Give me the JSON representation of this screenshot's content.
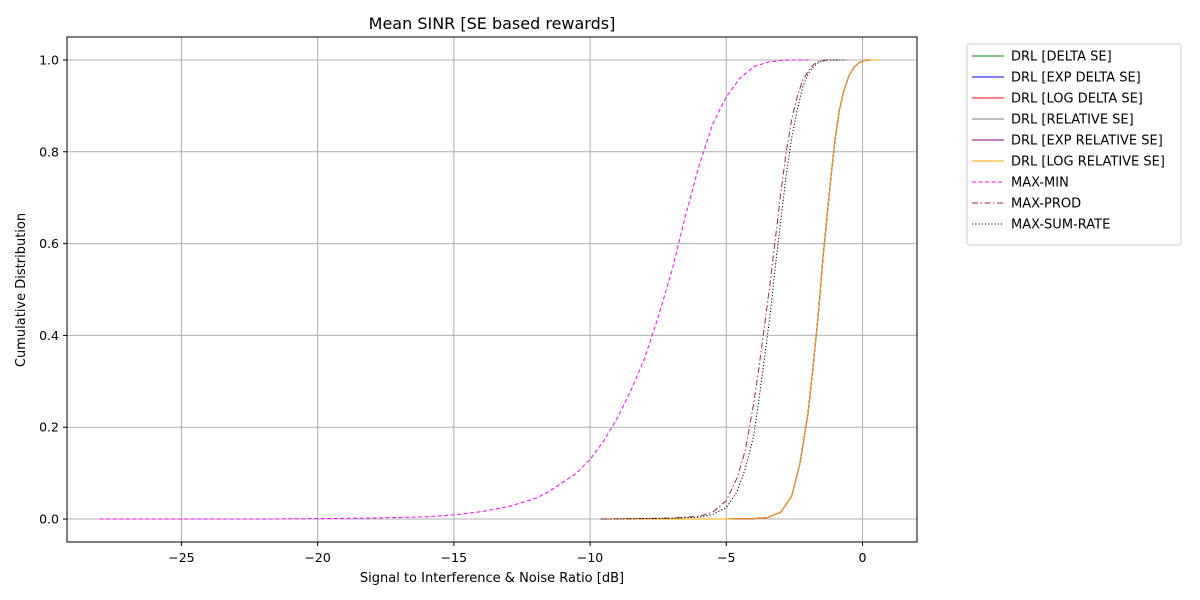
{
  "chart_data": {
    "type": "line",
    "title": "Mean SINR [SE based rewards]",
    "xlabel": "Signal to Interference & Noise Ratio [dB]",
    "ylabel": "Cumulative Distribution",
    "xlim": [
      -29.2,
      2.0
    ],
    "ylim": [
      -0.05,
      1.05
    ],
    "xticks": [
      -25,
      -20,
      -15,
      -10,
      -5,
      0
    ],
    "xtick_labels": [
      "−25",
      "−20",
      "−15",
      "−10",
      "−5",
      "0"
    ],
    "yticks": [
      0.0,
      0.2,
      0.4,
      0.6,
      0.8,
      1.0
    ],
    "ytick_labels": [
      "0.0",
      "0.2",
      "0.4",
      "0.6",
      "0.8",
      "1.0"
    ],
    "grid": true,
    "legend_position": "outside-right",
    "series": [
      {
        "name": "DRL [DELTA SE]",
        "color": "#008000",
        "style": "solid",
        "x": [
          -9.6,
          -6,
          -5,
          -4,
          -3.5,
          -3,
          -2.6,
          -2.3,
          -2.0,
          -1.8,
          -1.6,
          -1.45,
          -1.3,
          -1.15,
          -1.0,
          -0.85,
          -0.7,
          -0.5,
          -0.3,
          -0.1,
          0.1,
          0.3,
          0.55
        ],
        "y": [
          0.0,
          0.0,
          0.0,
          0.001,
          0.003,
          0.015,
          0.05,
          0.12,
          0.23,
          0.34,
          0.46,
          0.57,
          0.66,
          0.75,
          0.83,
          0.89,
          0.93,
          0.965,
          0.985,
          0.995,
          0.999,
          1.0,
          1.0
        ]
      },
      {
        "name": "DRL [EXP DELTA SE]",
        "color": "#0000ff",
        "style": "solid",
        "x": [
          -9.6,
          -6,
          -5,
          -4,
          -3.5,
          -3,
          -2.6,
          -2.3,
          -2.0,
          -1.8,
          -1.6,
          -1.45,
          -1.3,
          -1.15,
          -1.0,
          -0.85,
          -0.7,
          -0.5,
          -0.3,
          -0.1,
          0.1,
          0.3,
          0.55
        ],
        "y": [
          0.0,
          0.0,
          0.0,
          0.001,
          0.003,
          0.015,
          0.05,
          0.12,
          0.23,
          0.34,
          0.46,
          0.57,
          0.66,
          0.75,
          0.83,
          0.89,
          0.93,
          0.965,
          0.985,
          0.995,
          0.999,
          1.0,
          1.0
        ]
      },
      {
        "name": "DRL [LOG DELTA SE]",
        "color": "#ff0000",
        "style": "solid",
        "x": [
          -9.6,
          -6,
          -5,
          -4,
          -3.5,
          -3,
          -2.6,
          -2.3,
          -2.0,
          -1.8,
          -1.6,
          -1.45,
          -1.3,
          -1.15,
          -1.0,
          -0.85,
          -0.7,
          -0.5,
          -0.3,
          -0.1,
          0.1,
          0.3,
          0.55
        ],
        "y": [
          0.0,
          0.0,
          0.0,
          0.001,
          0.003,
          0.015,
          0.05,
          0.12,
          0.23,
          0.34,
          0.46,
          0.57,
          0.66,
          0.75,
          0.83,
          0.89,
          0.93,
          0.965,
          0.985,
          0.995,
          0.999,
          1.0,
          1.0
        ]
      },
      {
        "name": "DRL [RELATIVE SE]",
        "color": "#808080",
        "style": "solid",
        "x": [
          -9.6,
          -6,
          -5,
          -4,
          -3.5,
          -3,
          -2.6,
          -2.3,
          -2.0,
          -1.8,
          -1.6,
          -1.45,
          -1.3,
          -1.15,
          -1.0,
          -0.85,
          -0.7,
          -0.5,
          -0.3,
          -0.1,
          0.1,
          0.3,
          0.55
        ],
        "y": [
          0.0,
          0.0,
          0.0,
          0.001,
          0.003,
          0.015,
          0.05,
          0.12,
          0.23,
          0.34,
          0.46,
          0.57,
          0.66,
          0.75,
          0.83,
          0.89,
          0.93,
          0.965,
          0.985,
          0.995,
          0.999,
          1.0,
          1.0
        ]
      },
      {
        "name": "DRL [EXP RELATIVE SE]",
        "color": "#800080",
        "style": "solid",
        "x": [
          -9.6,
          -6,
          -5,
          -4,
          -3.5,
          -3,
          -2.6,
          -2.3,
          -2.0,
          -1.8,
          -1.6,
          -1.45,
          -1.3,
          -1.15,
          -1.0,
          -0.85,
          -0.7,
          -0.5,
          -0.3,
          -0.1,
          0.1,
          0.3,
          0.55
        ],
        "y": [
          0.0,
          0.0,
          0.0,
          0.001,
          0.003,
          0.015,
          0.05,
          0.12,
          0.23,
          0.34,
          0.46,
          0.57,
          0.66,
          0.75,
          0.83,
          0.89,
          0.93,
          0.965,
          0.985,
          0.995,
          0.999,
          1.0,
          1.0
        ]
      },
      {
        "name": "DRL [LOG RELATIVE SE]",
        "color": "#ffa500",
        "style": "solid",
        "x": [
          -9.6,
          -6,
          -5,
          -4,
          -3.5,
          -3,
          -2.6,
          -2.3,
          -2.0,
          -1.8,
          -1.6,
          -1.45,
          -1.3,
          -1.15,
          -1.0,
          -0.85,
          -0.7,
          -0.5,
          -0.3,
          -0.1,
          0.1,
          0.3,
          0.6
        ],
        "y": [
          0.0,
          0.0,
          0.0,
          0.001,
          0.003,
          0.015,
          0.05,
          0.12,
          0.23,
          0.34,
          0.46,
          0.57,
          0.66,
          0.75,
          0.83,
          0.89,
          0.93,
          0.965,
          0.985,
          0.995,
          0.999,
          1.0,
          1.0
        ]
      },
      {
        "name": "MAX-MIN",
        "color": "#ff00ff",
        "style": "dashed",
        "x": [
          -28,
          -25,
          -22,
          -20,
          -18,
          -16,
          -15,
          -14,
          -13,
          -12,
          -11.5,
          -11,
          -10.5,
          -10,
          -9.5,
          -9,
          -8.5,
          -8,
          -7.5,
          -7,
          -6.5,
          -6,
          -5.5,
          -5,
          -4.5,
          -4,
          -3.5,
          -3,
          -2.5,
          -2
        ],
        "y": [
          0.0,
          0.0,
          0.0,
          0.001,
          0.002,
          0.005,
          0.009,
          0.016,
          0.027,
          0.045,
          0.06,
          0.08,
          0.1,
          0.13,
          0.17,
          0.22,
          0.28,
          0.35,
          0.44,
          0.54,
          0.66,
          0.77,
          0.86,
          0.92,
          0.96,
          0.985,
          0.995,
          0.999,
          1.0,
          1.0
        ]
      },
      {
        "name": "MAX-PROD",
        "color": "#a52a2a",
        "style": "dashdot",
        "x": [
          -9.6,
          -8,
          -7,
          -6,
          -5.5,
          -5,
          -4.6,
          -4.3,
          -4.0,
          -3.8,
          -3.6,
          -3.4,
          -3.2,
          -3.0,
          -2.8,
          -2.6,
          -2.4,
          -2.2,
          -2.0,
          -1.8,
          -1.6,
          -1.3,
          -0.9
        ],
        "y": [
          0.0,
          0.001,
          0.002,
          0.006,
          0.015,
          0.04,
          0.09,
          0.15,
          0.25,
          0.33,
          0.42,
          0.51,
          0.61,
          0.71,
          0.8,
          0.87,
          0.92,
          0.955,
          0.975,
          0.99,
          0.997,
          1.0,
          1.0
        ]
      },
      {
        "name": "MAX-SUM-RATE",
        "color": "#000000",
        "style": "dotted",
        "x": [
          -9.6,
          -8,
          -7,
          -6,
          -5.5,
          -5,
          -4.6,
          -4.3,
          -4.0,
          -3.8,
          -3.6,
          -3.4,
          -3.2,
          -3.0,
          -2.8,
          -2.6,
          -2.4,
          -2.2,
          -2.0,
          -1.8,
          -1.6,
          -1.3,
          -0.6
        ],
        "y": [
          0.0,
          0.001,
          0.002,
          0.004,
          0.01,
          0.025,
          0.06,
          0.11,
          0.18,
          0.26,
          0.35,
          0.44,
          0.55,
          0.65,
          0.75,
          0.83,
          0.89,
          0.94,
          0.97,
          0.985,
          0.995,
          1.0,
          1.0
        ]
      }
    ]
  }
}
